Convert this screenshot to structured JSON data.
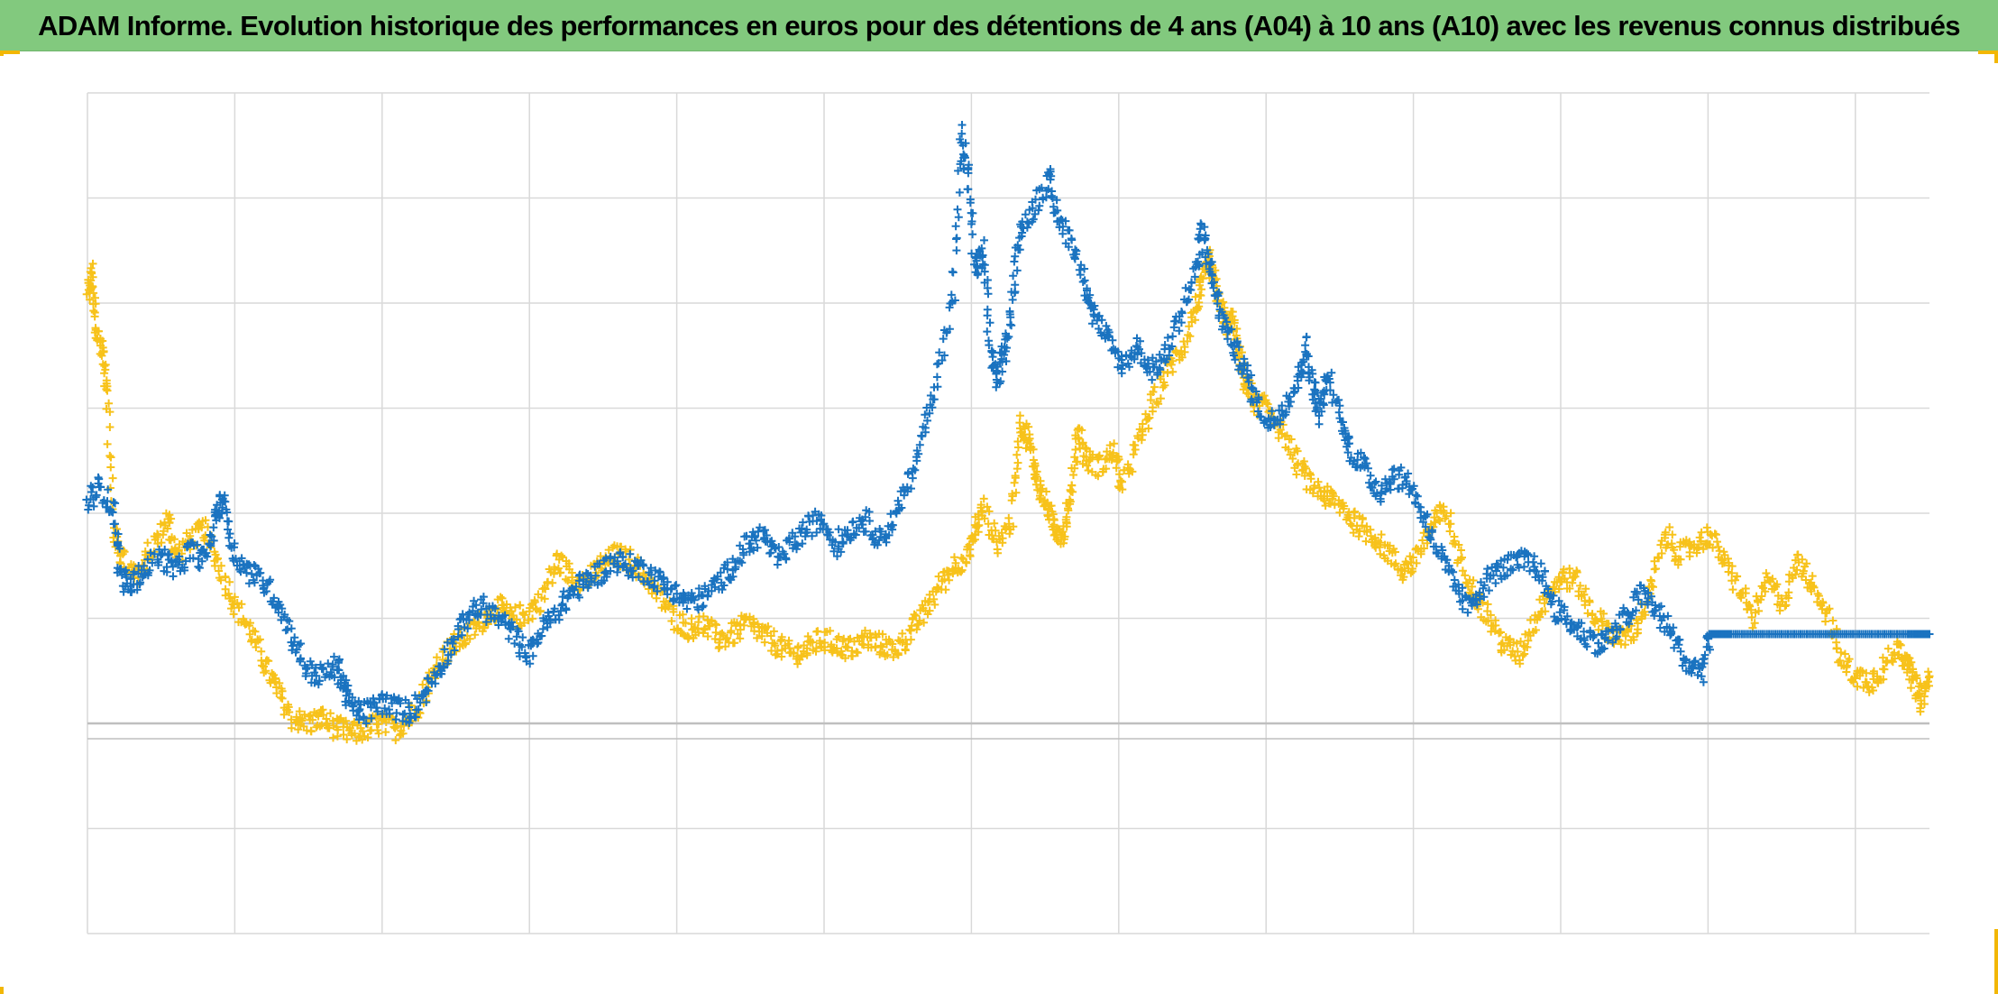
{
  "title": "ADAM Informe. Evolution historique des performances en euros pour des détentions de 4 ans (A04) à 10 ans (A10) avec les revenus connus distribués",
  "colors": {
    "title_bg": "#82c97e",
    "series_blue": "#1a73c0",
    "series_yellow": "#f7c21b",
    "grid": "#d9d9d9",
    "zero_line": "#bfbfbf",
    "corner_marks": "#f2b705"
  },
  "chart_data": {
    "type": "scatter",
    "marker": "plus",
    "title": "ADAM Informe. Evolution historique des performances en euros pour des détentions de 4 ans (A04) à 10 ans (A10) avec les revenus connus distribués",
    "xlabel": "",
    "ylabel": "",
    "x_tick_labels_visible": false,
    "y_tick_labels_visible": false,
    "grid": true,
    "legend": "none",
    "ylim": [
      -2,
      6
    ],
    "x_range": [
      0,
      12.55
    ],
    "reference_line_y": 0,
    "series": [
      {
        "color": "#1a73c0",
        "points": [
          [
            0.0,
            2.1
          ],
          [
            0.08,
            2.25
          ],
          [
            0.18,
            2.05
          ],
          [
            0.22,
            1.4
          ],
          [
            0.3,
            1.3
          ],
          [
            0.38,
            1.45
          ],
          [
            0.5,
            1.6
          ],
          [
            0.6,
            1.45
          ],
          [
            0.7,
            1.65
          ],
          [
            0.8,
            1.55
          ],
          [
            0.88,
            2.0
          ],
          [
            0.93,
            2.15
          ],
          [
            1.0,
            1.6
          ],
          [
            1.1,
            1.45
          ],
          [
            1.2,
            1.35
          ],
          [
            1.3,
            1.15
          ],
          [
            1.4,
            0.8
          ],
          [
            1.5,
            0.5
          ],
          [
            1.6,
            0.45
          ],
          [
            1.7,
            0.55
          ],
          [
            1.75,
            0.35
          ],
          [
            1.8,
            0.15
          ],
          [
            1.9,
            0.1
          ],
          [
            2.0,
            0.2
          ],
          [
            2.1,
            0.15
          ],
          [
            2.2,
            0.1
          ],
          [
            2.3,
            0.3
          ],
          [
            2.4,
            0.55
          ],
          [
            2.5,
            0.8
          ],
          [
            2.6,
            1.05
          ],
          [
            2.7,
            1.1
          ],
          [
            2.8,
            1.0
          ],
          [
            2.9,
            0.85
          ],
          [
            3.0,
            0.65
          ],
          [
            3.1,
            0.9
          ],
          [
            3.2,
            1.05
          ],
          [
            3.3,
            1.25
          ],
          [
            3.4,
            1.35
          ],
          [
            3.5,
            1.45
          ],
          [
            3.6,
            1.55
          ],
          [
            3.7,
            1.5
          ],
          [
            3.8,
            1.45
          ],
          [
            3.9,
            1.35
          ],
          [
            4.0,
            1.25
          ],
          [
            4.1,
            1.15
          ],
          [
            4.2,
            1.2
          ],
          [
            4.3,
            1.35
          ],
          [
            4.4,
            1.5
          ],
          [
            4.5,
            1.7
          ],
          [
            4.6,
            1.8
          ],
          [
            4.7,
            1.55
          ],
          [
            4.8,
            1.7
          ],
          [
            4.9,
            1.85
          ],
          [
            5.0,
            1.95
          ],
          [
            5.1,
            1.7
          ],
          [
            5.2,
            1.85
          ],
          [
            5.3,
            1.95
          ],
          [
            5.4,
            1.75
          ],
          [
            5.5,
            1.95
          ],
          [
            5.6,
            2.3
          ],
          [
            5.7,
            2.8
          ],
          [
            5.8,
            3.35
          ],
          [
            5.9,
            4.1
          ],
          [
            5.95,
            5.6
          ],
          [
            6.0,
            5.2
          ],
          [
            6.05,
            4.3
          ],
          [
            6.1,
            4.5
          ],
          [
            6.15,
            3.6
          ],
          [
            6.2,
            3.25
          ],
          [
            6.25,
            3.55
          ],
          [
            6.3,
            4.0
          ],
          [
            6.35,
            4.7
          ],
          [
            6.45,
            4.9
          ],
          [
            6.55,
            5.2
          ],
          [
            6.6,
            4.85
          ],
          [
            6.7,
            4.6
          ],
          [
            6.8,
            4.2
          ],
          [
            6.85,
            3.9
          ],
          [
            6.95,
            3.65
          ],
          [
            7.05,
            3.4
          ],
          [
            7.15,
            3.6
          ],
          [
            7.25,
            3.35
          ],
          [
            7.35,
            3.5
          ],
          [
            7.45,
            3.9
          ],
          [
            7.55,
            4.3
          ],
          [
            7.6,
            4.7
          ],
          [
            7.65,
            4.3
          ],
          [
            7.72,
            3.9
          ],
          [
            7.8,
            3.6
          ],
          [
            7.88,
            3.4
          ],
          [
            7.95,
            3.1
          ],
          [
            8.05,
            2.85
          ],
          [
            8.15,
            3.0
          ],
          [
            8.25,
            3.25
          ],
          [
            8.3,
            3.6
          ],
          [
            8.35,
            3.2
          ],
          [
            8.4,
            2.95
          ],
          [
            8.45,
            3.3
          ],
          [
            8.55,
            2.85
          ],
          [
            8.6,
            2.6
          ],
          [
            8.7,
            2.45
          ],
          [
            8.8,
            2.2
          ],
          [
            8.9,
            2.35
          ],
          [
            9.0,
            2.3
          ],
          [
            9.1,
            2.0
          ],
          [
            9.2,
            1.65
          ],
          [
            9.3,
            1.35
          ],
          [
            9.4,
            1.1
          ],
          [
            9.5,
            1.3
          ],
          [
            9.6,
            1.45
          ],
          [
            9.7,
            1.5
          ],
          [
            9.8,
            1.55
          ],
          [
            9.9,
            1.45
          ],
          [
            10.0,
            1.1
          ],
          [
            10.1,
            0.95
          ],
          [
            10.2,
            0.85
          ],
          [
            10.3,
            0.75
          ],
          [
            10.4,
            0.85
          ],
          [
            10.5,
            1.05
          ],
          [
            10.6,
            1.25
          ],
          [
            10.7,
            1.05
          ],
          [
            10.8,
            0.85
          ],
          [
            10.9,
            0.55
          ],
          [
            11.0,
            0.5
          ],
          [
            11.05,
            0.85
          ],
          [
            11.2,
            0.85
          ],
          [
            11.4,
            0.85
          ],
          [
            11.6,
            0.85
          ],
          [
            11.8,
            0.85
          ],
          [
            12.0,
            0.85
          ],
          [
            12.2,
            0.85
          ],
          [
            12.4,
            0.85
          ],
          [
            12.55,
            0.85
          ]
        ]
      },
      {
        "color": "#f7c21b",
        "points": [
          [
            0.0,
            4.05
          ],
          [
            0.03,
            4.3
          ],
          [
            0.06,
            3.75
          ],
          [
            0.1,
            3.55
          ],
          [
            0.13,
            3.2
          ],
          [
            0.18,
            1.8
          ],
          [
            0.25,
            1.55
          ],
          [
            0.35,
            1.4
          ],
          [
            0.45,
            1.7
          ],
          [
            0.55,
            1.95
          ],
          [
            0.6,
            1.6
          ],
          [
            0.7,
            1.75
          ],
          [
            0.8,
            1.85
          ],
          [
            0.9,
            1.5
          ],
          [
            1.0,
            1.15
          ],
          [
            1.1,
            0.9
          ],
          [
            1.2,
            0.6
          ],
          [
            1.3,
            0.3
          ],
          [
            1.4,
            0.05
          ],
          [
            1.5,
            0.0
          ],
          [
            1.6,
            0.05
          ],
          [
            1.7,
            -0.05
          ],
          [
            1.8,
            -0.1
          ],
          [
            1.9,
            -0.05
          ],
          [
            2.0,
            0.0
          ],
          [
            2.1,
            -0.05
          ],
          [
            2.2,
            0.05
          ],
          [
            2.3,
            0.3
          ],
          [
            2.4,
            0.6
          ],
          [
            2.5,
            0.75
          ],
          [
            2.6,
            0.85
          ],
          [
            2.7,
            1.0
          ],
          [
            2.8,
            1.1
          ],
          [
            2.9,
            1.0
          ],
          [
            3.0,
            1.05
          ],
          [
            3.1,
            1.2
          ],
          [
            3.2,
            1.55
          ],
          [
            3.3,
            1.4
          ],
          [
            3.4,
            1.35
          ],
          [
            3.5,
            1.5
          ],
          [
            3.6,
            1.6
          ],
          [
            3.7,
            1.55
          ],
          [
            3.8,
            1.4
          ],
          [
            3.9,
            1.2
          ],
          [
            4.0,
            1.0
          ],
          [
            4.1,
            0.9
          ],
          [
            4.2,
            0.95
          ],
          [
            4.3,
            0.8
          ],
          [
            4.4,
            0.85
          ],
          [
            4.5,
            0.95
          ],
          [
            4.6,
            0.85
          ],
          [
            4.7,
            0.75
          ],
          [
            4.8,
            0.65
          ],
          [
            4.9,
            0.7
          ],
          [
            5.0,
            0.8
          ],
          [
            5.1,
            0.75
          ],
          [
            5.2,
            0.7
          ],
          [
            5.3,
            0.8
          ],
          [
            5.4,
            0.75
          ],
          [
            5.5,
            0.7
          ],
          [
            5.6,
            0.85
          ],
          [
            5.7,
            1.05
          ],
          [
            5.8,
            1.3
          ],
          [
            5.9,
            1.5
          ],
          [
            6.0,
            1.6
          ],
          [
            6.05,
            1.85
          ],
          [
            6.1,
            2.05
          ],
          [
            6.2,
            1.7
          ],
          [
            6.3,
            1.95
          ],
          [
            6.35,
            2.85
          ],
          [
            6.4,
            2.75
          ],
          [
            6.45,
            2.45
          ],
          [
            6.5,
            2.2
          ],
          [
            6.55,
            2.0
          ],
          [
            6.6,
            1.85
          ],
          [
            6.65,
            1.8
          ],
          [
            6.7,
            2.2
          ],
          [
            6.75,
            2.8
          ],
          [
            6.8,
            2.5
          ],
          [
            6.9,
            2.45
          ],
          [
            7.0,
            2.6
          ],
          [
            7.05,
            2.25
          ],
          [
            7.15,
            2.65
          ],
          [
            7.25,
            3.0
          ],
          [
            7.35,
            3.35
          ],
          [
            7.45,
            3.55
          ],
          [
            7.55,
            3.95
          ],
          [
            7.6,
            4.2
          ],
          [
            7.65,
            4.4
          ],
          [
            7.7,
            4.1
          ],
          [
            7.75,
            3.8
          ],
          [
            7.8,
            3.85
          ],
          [
            7.85,
            3.45
          ],
          [
            7.9,
            3.2
          ],
          [
            7.95,
            3.05
          ],
          [
            8.05,
            3.0
          ],
          [
            8.15,
            2.75
          ],
          [
            8.25,
            2.45
          ],
          [
            8.35,
            2.25
          ],
          [
            8.45,
            2.15
          ],
          [
            8.55,
            2.05
          ],
          [
            8.65,
            1.9
          ],
          [
            8.75,
            1.8
          ],
          [
            8.85,
            1.65
          ],
          [
            8.95,
            1.45
          ],
          [
            9.05,
            1.55
          ],
          [
            9.15,
            1.85
          ],
          [
            9.25,
            2.05
          ],
          [
            9.35,
            1.55
          ],
          [
            9.45,
            1.25
          ],
          [
            9.55,
            1.0
          ],
          [
            9.65,
            0.75
          ],
          [
            9.75,
            0.65
          ],
          [
            9.85,
            0.95
          ],
          [
            9.95,
            1.25
          ],
          [
            10.05,
            1.4
          ],
          [
            10.15,
            1.35
          ],
          [
            10.25,
            1.05
          ],
          [
            10.35,
            0.9
          ],
          [
            10.45,
            0.8
          ],
          [
            10.55,
            0.9
          ],
          [
            10.65,
            1.25
          ],
          [
            10.75,
            1.8
          ],
          [
            10.85,
            1.6
          ],
          [
            10.95,
            1.7
          ],
          [
            11.05,
            1.8
          ],
          [
            11.15,
            1.55
          ],
          [
            11.25,
            1.3
          ],
          [
            11.35,
            1.0
          ],
          [
            11.45,
            1.35
          ],
          [
            11.55,
            1.15
          ],
          [
            11.65,
            1.55
          ],
          [
            11.75,
            1.35
          ],
          [
            11.85,
            1.05
          ],
          [
            11.95,
            0.6
          ],
          [
            12.05,
            0.45
          ],
          [
            12.15,
            0.4
          ],
          [
            12.25,
            0.55
          ],
          [
            12.35,
            0.75
          ],
          [
            12.4,
            0.55
          ],
          [
            12.45,
            0.4
          ],
          [
            12.5,
            0.2
          ],
          [
            12.55,
            0.45
          ]
        ]
      }
    ]
  }
}
